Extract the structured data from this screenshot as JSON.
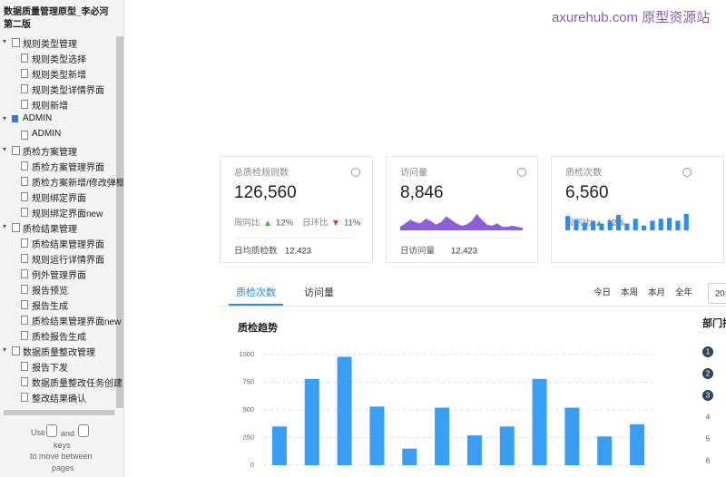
{
  "sidebar": {
    "title": "数据质量管理原型_李必河第二版",
    "groups": [
      {
        "label": "规则类型管理",
        "icon": "page",
        "children": [
          "规则类型选择",
          "规则类型新增",
          "规则类型详情界面",
          "规则新增"
        ]
      },
      {
        "label": "ADMIN",
        "icon": "folder",
        "children": [
          "ADMIN"
        ]
      },
      {
        "label": "质检方案管理",
        "icon": "page",
        "children": [
          "质检方案管理界面",
          "质检方案新增/修改弹框",
          "规则绑定界面",
          "规则绑定界面new"
        ]
      },
      {
        "label": "质检结果管理",
        "icon": "page",
        "children": [
          "质检结果管理界面",
          "规则运行详情界面",
          "例外管理界面",
          "报告预览",
          "报告生成",
          "质检结果管理界面new",
          "质检报告生成"
        ]
      },
      {
        "label": "数据质量整改管理",
        "icon": "page",
        "children": [
          "报告下发",
          "数据质量整改任务创建",
          "整改结果确认"
        ]
      }
    ],
    "help": [
      "Use",
      "and",
      "keys",
      "to move between",
      "pages"
    ]
  },
  "watermark": "axurehub.com 原型资源站",
  "cards": [
    {
      "title": "总质检规则数",
      "value": "126,560",
      "trend": [
        {
          "label": "周同比",
          "dir": "up",
          "value": "12%"
        },
        {
          "label": "日环比",
          "dir": "down",
          "value": "11%"
        }
      ],
      "footer_label": "日均质检数",
      "footer_value": "12,423"
    },
    {
      "title": "访问量",
      "value": "8,846",
      "spark": "area",
      "color": "#8e5fd6",
      "spark_values": [
        3,
        6,
        9,
        7,
        6,
        10,
        8,
        5,
        7,
        12,
        9,
        6,
        4,
        5,
        8,
        14,
        9,
        5,
        4,
        6,
        3,
        3,
        4,
        3,
        2
      ],
      "footer_label": "日访问量",
      "footer_value": "12,423"
    },
    {
      "title": "质检次数",
      "value": "6,560",
      "spark": "bar",
      "color": "#2d8cf0",
      "spark_values": [
        15,
        11,
        8,
        10,
        7,
        10,
        16,
        7,
        12,
        5,
        10,
        12,
        13,
        10,
        17
      ],
      "trend": [
        {
          "label": "周同比",
          "dir": "up",
          "value": "12%"
        }
      ]
    }
  ],
  "tabs": {
    "items": [
      "质检次数",
      "访问量"
    ],
    "active": 0,
    "ranges": [
      "今日",
      "本周",
      "本月",
      "全年"
    ],
    "date": "201"
  },
  "chart_data": {
    "type": "bar",
    "title": "质检趋势",
    "categories": [
      null,
      null,
      null,
      null,
      null,
      null,
      null,
      null,
      null,
      null,
      null,
      null
    ],
    "values": [
      350,
      780,
      980,
      530,
      150,
      520,
      270,
      350,
      780,
      520,
      260,
      370
    ],
    "color": "#3a9ef5",
    "ylim": [
      0,
      1000
    ],
    "yticks": [
      0,
      250,
      500,
      750,
      1000
    ],
    "grid": true
  },
  "ranking": {
    "title": "部门排",
    "ranks": [
      "1",
      "2",
      "3",
      "4",
      "5",
      "6"
    ]
  }
}
